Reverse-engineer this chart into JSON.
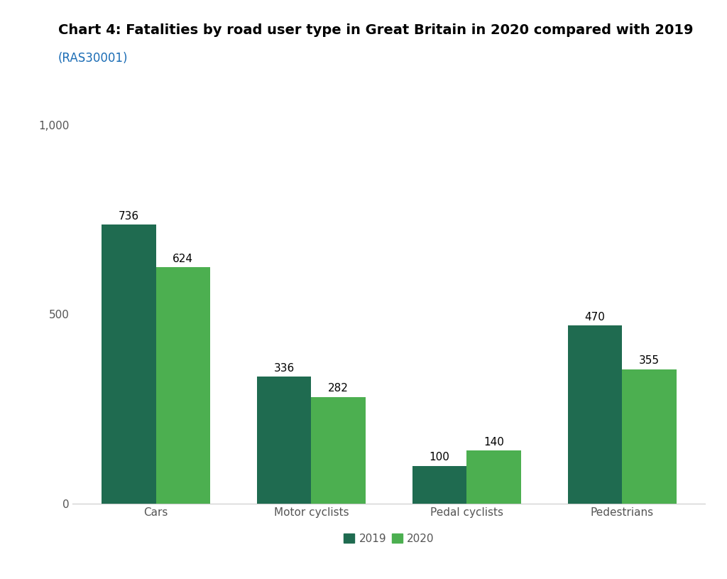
{
  "title_line1": "Chart 4: Fatalities by road user type in Great Britain in 2020 compared with 2019",
  "title_line2": "(RAS30001)",
  "categories": [
    "Cars",
    "Motor cyclists",
    "Pedal cyclists",
    "Pedestrians"
  ],
  "values_2019": [
    736,
    336,
    100,
    470
  ],
  "values_2020": [
    624,
    282,
    140,
    355
  ],
  "color_2019": "#1f6b50",
  "color_2020": "#4caf50",
  "ylim": [
    0,
    1100
  ],
  "yticks": [
    0,
    500,
    1000
  ],
  "ytick_labels": [
    "0",
    "500",
    "1,000"
  ],
  "legend_labels": [
    "2019",
    "2020"
  ],
  "bar_width": 0.35,
  "background_color": "#ffffff",
  "title_color": "#000000",
  "link_color": "#1a6cb5",
  "label_fontsize": 11,
  "tick_fontsize": 11,
  "title_fontsize": 14,
  "link_fontsize": 12
}
